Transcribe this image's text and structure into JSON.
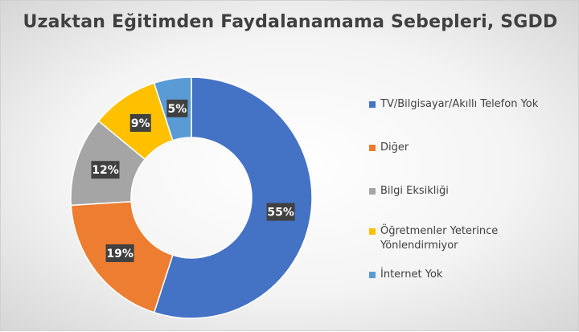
{
  "chart_data": {
    "type": "pie",
    "title": "Uzaktan Eğitimden Faydalanamama Sebepleri, SGDD",
    "categories": [
      "TV/Bilgisayar/Akıllı Telefon Yok",
      "Diğer",
      "Bilgi Eksikliği",
      "Öğretmenler Yeterince Yönlendirmiyor",
      "İnternet Yok"
    ],
    "values": [
      55,
      19,
      12,
      9,
      5
    ],
    "data_labels": [
      "55%",
      "19%",
      "12%",
      "9%",
      "5%"
    ],
    "colors": [
      "#4472C4",
      "#ED7D31",
      "#A5A5A5",
      "#FFC000",
      "#5B9BD5"
    ],
    "donut": true,
    "legend_position": "right"
  }
}
